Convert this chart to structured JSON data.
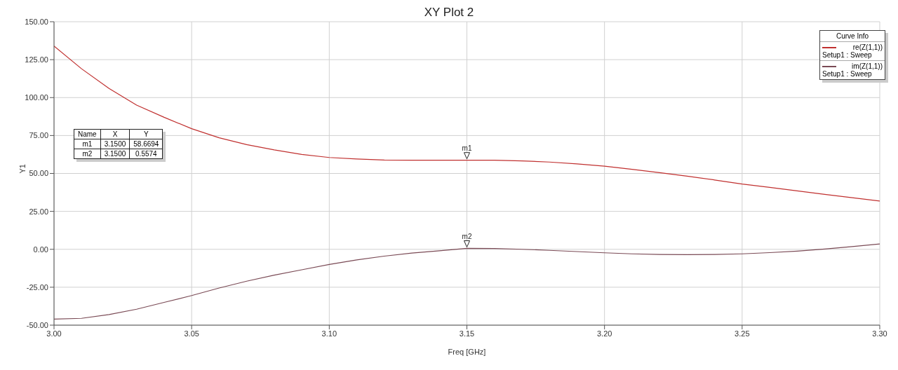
{
  "chart_data": {
    "type": "line",
    "title": "XY Plot 2",
    "xlabel": "Freq [GHz]",
    "ylabel": "Y1",
    "legend_title": "Curve Info",
    "legend": "top right",
    "grid": true,
    "marker": "none",
    "line_style": "solid",
    "x": [
      3.0,
      3.01,
      3.02,
      3.03,
      3.04,
      3.05,
      3.06,
      3.07,
      3.08,
      3.09,
      3.1,
      3.11,
      3.12,
      3.13,
      3.14,
      3.15,
      3.16,
      3.17,
      3.18,
      3.19,
      3.2,
      3.21,
      3.22,
      3.23,
      3.24,
      3.25,
      3.26,
      3.27,
      3.28,
      3.29,
      3.3
    ],
    "series": [
      {
        "name": "re(Z(1,1))\nSetup1 : Sweep",
        "color": "#c0302f",
        "values": [
          134,
          119,
          106,
          95,
          87,
          79.5,
          73.5,
          69,
          65.5,
          62.5,
          60.5,
          59.5,
          58.8,
          58.7,
          58.7,
          58.7,
          58.7,
          58.3,
          57.5,
          56.3,
          54.8,
          52.7,
          50.5,
          48.2,
          45.7,
          43,
          40.8,
          38.5,
          36.2,
          34,
          31.8
        ]
      },
      {
        "name": "im(Z(1,1))\nSetup1 : Sweep",
        "color": "#7a4a55",
        "values": [
          -46,
          -45.5,
          -43,
          -39.5,
          -35,
          -30.5,
          -25.5,
          -21,
          -17,
          -13.5,
          -10,
          -7,
          -4.5,
          -2.5,
          -1,
          0.6,
          0.5,
          0,
          -0.7,
          -1.5,
          -2.3,
          -3,
          -3.4,
          -3.5,
          -3.4,
          -3,
          -2.2,
          -1.2,
          0.2,
          1.8,
          3.5
        ]
      }
    ],
    "xlim": [
      3.0,
      3.3
    ],
    "xticks": [
      {
        "value": 3.0,
        "label": "3.00"
      },
      {
        "value": 3.05,
        "label": "3.05"
      },
      {
        "value": 3.1,
        "label": "3.10"
      },
      {
        "value": 3.15,
        "label": "3.15"
      },
      {
        "value": 3.2,
        "label": "3.20"
      },
      {
        "value": 3.25,
        "label": "3.25"
      },
      {
        "value": 3.3,
        "label": "3.30"
      }
    ],
    "ylim": [
      -50,
      150
    ],
    "yticks": [
      {
        "value": -50,
        "label": "-50.00"
      },
      {
        "value": -25,
        "label": "-25.00"
      },
      {
        "value": 0,
        "label": "0.00"
      },
      {
        "value": 25,
        "label": "25.00"
      },
      {
        "value": 50,
        "label": "50.00"
      },
      {
        "value": 75,
        "label": "75.00"
      },
      {
        "value": 100,
        "label": "100.00"
      },
      {
        "value": 125,
        "label": "125.00"
      },
      {
        "value": 150,
        "label": "150.00"
      }
    ],
    "annotations": [
      {
        "text": "m1",
        "x": 3.15,
        "y": 58.6694
      },
      {
        "text": "m2",
        "x": 3.15,
        "y": 0.5574
      },
      "Name",
      "X",
      "Y",
      "m1",
      "3.1500",
      "58.6694",
      "m2",
      "3.1500",
      "0.5574"
    ]
  }
}
